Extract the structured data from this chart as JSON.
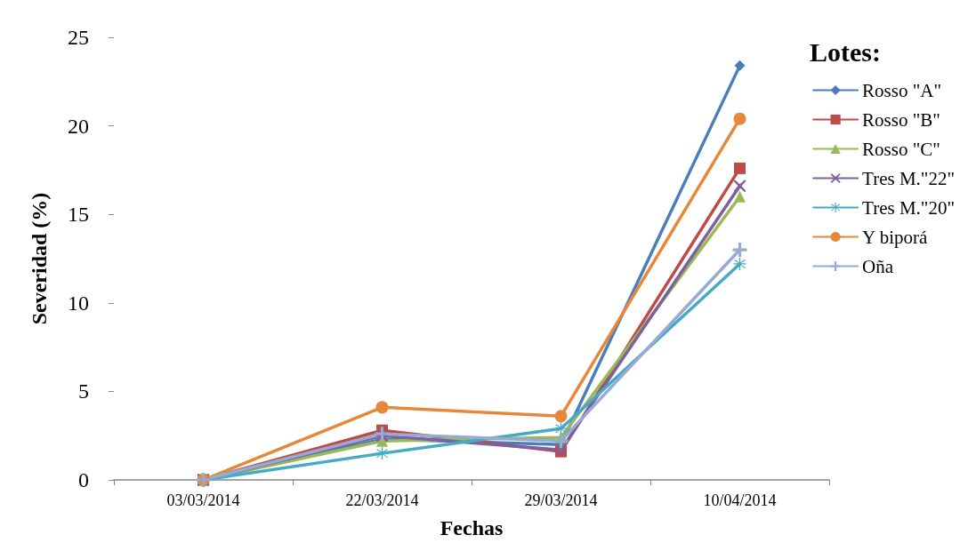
{
  "chart_data": {
    "type": "line",
    "xlabel": "Fechas",
    "ylabel": "Severidad (%)",
    "legend_title": "Lotes:",
    "legend": "top right",
    "grid": false,
    "categories": [
      "03/03/2014",
      "22/03/2014",
      "29/03/2014",
      "10/04/2014"
    ],
    "ylim": [
      0,
      25
    ],
    "yticks": [
      0,
      5,
      10,
      15,
      20,
      25
    ],
    "series": [
      {
        "name": "Rosso \"A\"",
        "color": "#4a7ebb",
        "marker": "diamond",
        "values": [
          0,
          2.3,
          2.0,
          23.4
        ]
      },
      {
        "name": "Rosso \"B\"",
        "color": "#be4b48",
        "marker": "square",
        "values": [
          0,
          2.8,
          1.6,
          17.6
        ]
      },
      {
        "name": "Rosso \"C\"",
        "color": "#98b954",
        "marker": "triangle",
        "values": [
          0,
          2.2,
          2.4,
          16.0
        ]
      },
      {
        "name": "Tres M.\"22\"",
        "color": "#7d60a0",
        "marker": "x",
        "values": [
          0,
          2.5,
          1.7,
          16.6
        ]
      },
      {
        "name": "Tres M.\"20\"",
        "color": "#46aac5",
        "marker": "star",
        "values": [
          0,
          1.5,
          2.9,
          12.2
        ]
      },
      {
        "name": "Y biporá",
        "color": "#e6883a",
        "marker": "circle",
        "values": [
          0,
          4.1,
          3.6,
          20.4
        ]
      },
      {
        "name": "Oña",
        "color": "#95abd4",
        "marker": "cross",
        "values": [
          0,
          2.6,
          2.2,
          13.0
        ]
      }
    ]
  }
}
